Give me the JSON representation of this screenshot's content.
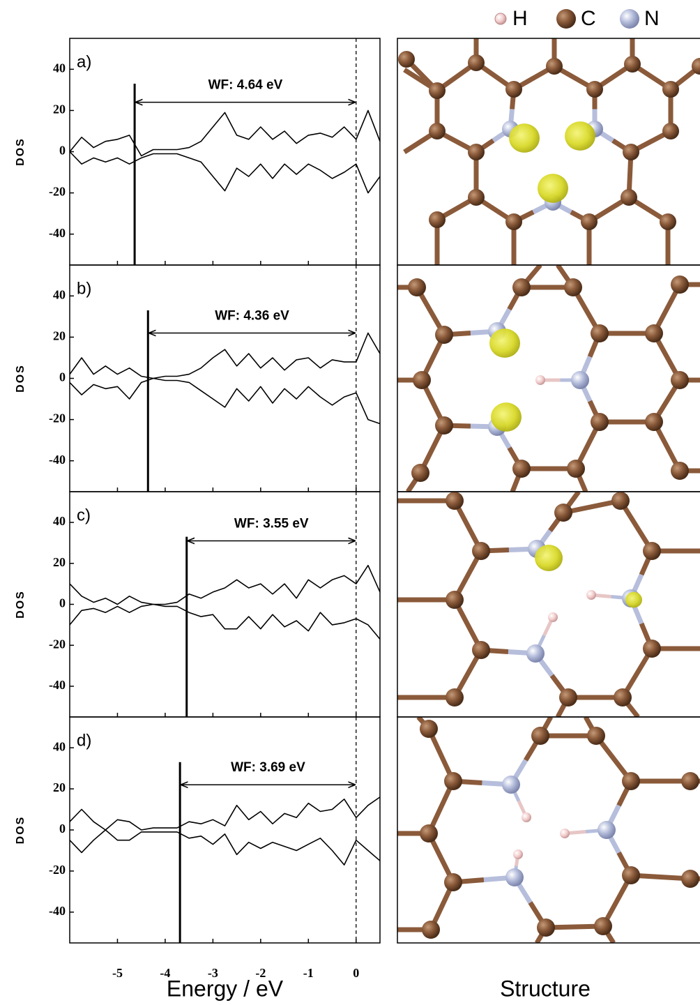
{
  "figure": {
    "legend": [
      "H",
      "C",
      "N"
    ],
    "structure_title": "Structure"
  },
  "chart_data": [
    {
      "type": "line",
      "label": "a)",
      "ylabel": "DOS",
      "x": [
        -6,
        -5.75,
        -5.5,
        -5.25,
        -5,
        -4.75,
        -4.5,
        -4.25,
        -4,
        -3.75,
        -3.5,
        -3.25,
        -3,
        -2.75,
        -2.5,
        -2.25,
        -2,
        -1.75,
        -1.5,
        -1.25,
        -1,
        -0.75,
        -0.5,
        -0.25,
        0,
        0.25,
        0.5
      ],
      "xlim": [
        -6,
        0.5
      ],
      "xticks": [
        -5,
        -4,
        -3,
        -2,
        -1,
        0
      ],
      "ylim": [
        -55,
        55
      ],
      "yticks": [
        -40,
        -20,
        0,
        20,
        40
      ],
      "series": [
        {
          "color": "#000000",
          "values": [
            0,
            7,
            2,
            5,
            6,
            8,
            -2,
            1,
            1,
            1,
            2,
            5,
            12,
            19,
            8,
            6,
            12,
            6,
            10,
            4,
            8,
            9,
            7,
            12,
            6,
            20,
            5
          ]
        },
        {
          "color": "#000000",
          "values": [
            0,
            -6,
            -3,
            -5,
            -3,
            -6,
            -3,
            -1,
            -1,
            -1,
            -3,
            -5,
            -12,
            -19,
            -8,
            -12,
            -6,
            -13,
            -6,
            -11,
            -6,
            -9,
            -13,
            -10,
            -6,
            -20,
            -12
          ]
        }
      ],
      "wf_line": {
        "x": -4.64,
        "top": 33
      },
      "arrow": {
        "x": [
          -4.64,
          0
        ],
        "y": 24
      },
      "annotation": "WF: 4.64 eV",
      "ref_x": 0
    },
    {
      "type": "line",
      "label": "b)",
      "ylabel": "DOS",
      "x": [
        -6,
        -5.75,
        -5.5,
        -5.25,
        -5,
        -4.75,
        -4.5,
        -4.25,
        -4,
        -3.75,
        -3.5,
        -3.25,
        -3,
        -2.75,
        -2.5,
        -2.25,
        -2,
        -1.75,
        -1.5,
        -1.25,
        -1,
        -0.75,
        -0.5,
        -0.25,
        0,
        0.25,
        0.5
      ],
      "xlim": [
        -6,
        0.5
      ],
      "xticks": [
        -5,
        -4,
        -3,
        -2,
        -1,
        0
      ],
      "ylim": [
        -55,
        55
      ],
      "yticks": [
        -40,
        -20,
        0,
        20,
        40
      ],
      "series": [
        {
          "color": "#000000",
          "values": [
            2,
            10,
            2,
            6,
            2,
            5,
            1,
            0,
            1,
            1,
            2,
            5,
            10,
            14,
            6,
            12,
            5,
            10,
            4,
            9,
            10,
            5,
            9,
            8,
            8,
            22,
            12
          ]
        },
        {
          "color": "#000000",
          "values": [
            -2,
            -8,
            -3,
            -5,
            -4,
            -10,
            -2,
            0,
            -1,
            -1,
            -2,
            -6,
            -10,
            -14,
            -5,
            -11,
            -4,
            -12,
            -5,
            -10,
            -4,
            -9,
            -13,
            -9,
            -7,
            -20,
            -22
          ]
        }
      ],
      "wf_line": {
        "x": -4.36,
        "top": 33
      },
      "arrow": {
        "x": [
          -4.36,
          0
        ],
        "y": 22
      },
      "annotation": "WF: 4.36 eV",
      "ref_x": 0
    },
    {
      "type": "line",
      "label": "c)",
      "ylabel": "DOS",
      "x": [
        -6,
        -5.75,
        -5.5,
        -5.25,
        -5,
        -4.75,
        -4.5,
        -4.25,
        -4,
        -3.75,
        -3.5,
        -3.25,
        -3,
        -2.75,
        -2.5,
        -2.25,
        -2,
        -1.75,
        -1.5,
        -1.25,
        -1,
        -0.75,
        -0.5,
        -0.25,
        0,
        0.25,
        0.5
      ],
      "xlim": [
        -6,
        0.5
      ],
      "xticks": [
        -5,
        -4,
        -3,
        -2,
        -1,
        0
      ],
      "ylim": [
        -55,
        55
      ],
      "yticks": [
        -40,
        -20,
        0,
        20,
        40
      ],
      "series": [
        {
          "color": "#000000",
          "values": [
            10,
            4,
            1,
            3,
            0,
            4,
            1,
            0,
            0,
            1,
            5,
            3,
            6,
            8,
            12,
            8,
            10,
            5,
            10,
            3,
            12,
            8,
            12,
            14,
            10,
            19,
            6
          ]
        },
        {
          "color": "#000000",
          "values": [
            -10,
            -3,
            -2,
            -4,
            -1,
            -4,
            -1,
            0,
            -1,
            -1,
            -4,
            -6,
            -5,
            -12,
            -12,
            -6,
            -12,
            -5,
            -11,
            -8,
            -13,
            -4,
            -10,
            -9,
            -7,
            -10,
            -17
          ]
        }
      ],
      "wf_line": {
        "x": -3.55,
        "top": 33
      },
      "arrow": {
        "x": [
          -3.55,
          0
        ],
        "y": 31
      },
      "annotation": "WF: 3.55 eV",
      "ref_x": 0
    },
    {
      "type": "line",
      "label": "d)",
      "ylabel": "DOS",
      "xlabel": "Energy / eV",
      "x": [
        -6,
        -5.75,
        -5.5,
        -5.25,
        -5,
        -4.75,
        -4.5,
        -4.25,
        -4,
        -3.75,
        -3.5,
        -3.25,
        -3,
        -2.75,
        -2.5,
        -2.25,
        -2,
        -1.75,
        -1.5,
        -1.25,
        -1,
        -0.75,
        -0.5,
        -0.25,
        0,
        0.25,
        0.5
      ],
      "xlim": [
        -6,
        0.5
      ],
      "xticks": [
        -5,
        -4,
        -3,
        -2,
        -1,
        0
      ],
      "ylim": [
        -55,
        55
      ],
      "yticks": [
        -40,
        -20,
        0,
        20,
        40
      ],
      "series": [
        {
          "color": "#000000",
          "values": [
            4,
            10,
            4,
            0,
            5,
            4,
            0,
            1,
            1,
            1,
            4,
            3,
            5,
            2,
            12,
            5,
            9,
            3,
            8,
            6,
            13,
            9,
            10,
            15,
            6,
            12,
            16
          ]
        },
        {
          "color": "#000000",
          "values": [
            -5,
            -11,
            -5,
            0,
            -5,
            -5,
            -1,
            -1,
            -1,
            -1,
            -4,
            -3,
            -7,
            -2,
            -12,
            -6,
            -9,
            -6,
            -8,
            -10,
            -7,
            -4,
            -10,
            -17,
            -5,
            -10,
            -15
          ]
        }
      ],
      "wf_line": {
        "x": -3.69,
        "top": 33
      },
      "arrow": {
        "x": [
          -3.69,
          0
        ],
        "y": 22
      },
      "annotation": "WF: 3.69 eV",
      "ref_x": 0
    }
  ]
}
